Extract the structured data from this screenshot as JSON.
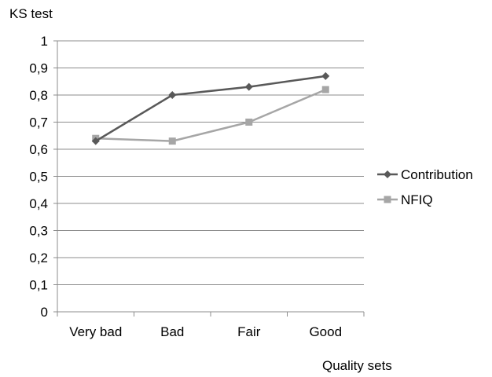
{
  "chart_data": {
    "type": "line",
    "ylabel": "KS test",
    "xlabel": "Quality sets",
    "categories": [
      "Very bad",
      "Bad",
      "Fair",
      "Good"
    ],
    "y_ticks": [
      "0",
      "0,1",
      "0,2",
      "0,3",
      "0,4",
      "0,5",
      "0,6",
      "0,7",
      "0,8",
      "0,9",
      "1"
    ],
    "ylim": [
      0,
      1
    ],
    "grid": "horizontal",
    "legend_position": "right",
    "series": [
      {
        "name": "Contribution",
        "values": [
          0.63,
          0.8,
          0.83,
          0.87
        ],
        "color": "#595959",
        "marker": "diamond"
      },
      {
        "name": "NFIQ",
        "values": [
          0.64,
          0.63,
          0.7,
          0.82
        ],
        "color": "#a6a6a6",
        "marker": "square"
      }
    ]
  }
}
